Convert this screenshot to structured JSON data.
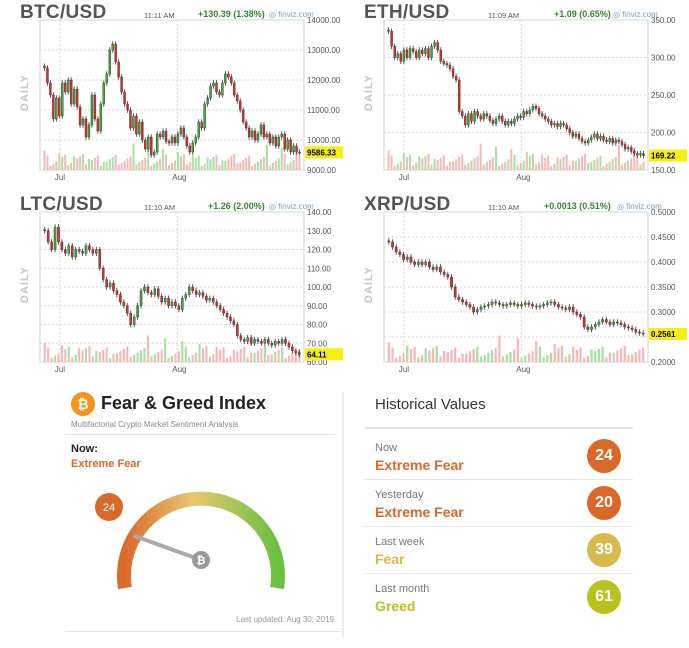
{
  "panels": [
    {
      "pair": "BTC/USD",
      "time": "11:11 AM",
      "change": "+130.39 (1.38%)",
      "brand": "finviz.com",
      "daily_label": "DAILY",
      "last_label": "9586.33",
      "chart_data": {
        "type": "candlestick",
        "title": "BTC/USD",
        "x_ticks": [
          "Jul",
          "Aug"
        ],
        "y_ticks": [
          "14000.00",
          "13000.00",
          "12000.00",
          "11000.00",
          "10000.00",
          "9000.00"
        ],
        "ylim": [
          9000,
          14000
        ],
        "last": 9586.33,
        "closes": [
          12400,
          11900,
          11500,
          10700,
          11400,
          10800,
          11900,
          11600,
          12000,
          11200,
          11700,
          11100,
          10500,
          10700,
          10100,
          10500,
          11500,
          10700,
          10300,
          11200,
          11900,
          12200,
          13000,
          13200,
          12600,
          12100,
          11600,
          11200,
          11000,
          10400,
          10800,
          10200,
          10600,
          10000,
          9700,
          10100,
          9500,
          9600,
          10200,
          10100,
          10300,
          9950,
          9900,
          10100,
          9900,
          10200,
          10400,
          10100,
          9800,
          9600,
          9900,
          10100,
          10600,
          10400,
          11200,
          11400,
          11800,
          11900,
          11600,
          11500,
          11900,
          12200,
          12100,
          11900,
          11500,
          11300,
          11000,
          10600,
          10400,
          10100,
          10300,
          10000,
          10200,
          10500,
          10100,
          10200,
          9900,
          10100,
          9800,
          10100,
          10200,
          9700,
          10000,
          9600,
          9800,
          9600,
          9586
        ]
      }
    },
    {
      "pair": "ETH/USD",
      "time": "11:09 AM",
      "change": "+1.09 (0.65%)",
      "brand": "finviz.com",
      "daily_label": "DAILY",
      "last_label": "169.22",
      "chart_data": {
        "type": "candlestick",
        "title": "ETH/USD",
        "x_ticks": [
          "Jul",
          "Aug"
        ],
        "y_ticks": [
          "350.00",
          "300.00",
          "250.00",
          "200.00",
          "150.00"
        ],
        "ylim": [
          150,
          350
        ],
        "last": 169.22,
        "closes": [
          335,
          315,
          300,
          305,
          295,
          310,
          300,
          312,
          308,
          300,
          310,
          305,
          312,
          300,
          315,
          320,
          310,
          295,
          292,
          290,
          285,
          275,
          270,
          228,
          222,
          210,
          225,
          215,
          228,
          222,
          218,
          225,
          222,
          216,
          212,
          218,
          222,
          215,
          210,
          215,
          212,
          218,
          222,
          220,
          228,
          225,
          230,
          235,
          232,
          225,
          222,
          218,
          215,
          210,
          212,
          208,
          212,
          210,
          205,
          200,
          195,
          198,
          192,
          188,
          186,
          190,
          194,
          198,
          192,
          195,
          190,
          188,
          192,
          186,
          190,
          188,
          184,
          178,
          180,
          175,
          172,
          170,
          172,
          169
        ]
      }
    },
    {
      "pair": "LTC/USD",
      "time": "11:10 AM",
      "change": "+1.26 (2.00%)",
      "brand": "finviz.com",
      "daily_label": "DAILY",
      "last_label": "64.11",
      "chart_data": {
        "type": "candlestick",
        "title": "LTC/USD",
        "x_ticks": [
          "Jul",
          "Aug"
        ],
        "y_ticks": [
          "140.00",
          "130.00",
          "120.00",
          "110.00",
          "100.00",
          "90.00",
          "80.00",
          "70.00",
          "60.00"
        ],
        "ylim": [
          60,
          140
        ],
        "last": 64.11,
        "closes": [
          130,
          124,
          120,
          132,
          124,
          120,
          118,
          122,
          116,
          120,
          119,
          118,
          122,
          120,
          118,
          120,
          110,
          104,
          100,
          102,
          98,
          96,
          92,
          90,
          86,
          80,
          84,
          90,
          98,
          100,
          97,
          96,
          99,
          95,
          92,
          94,
          90,
          92,
          90,
          88,
          94,
          96,
          100,
          98,
          96,
          97,
          95,
          93,
          94,
          92,
          90,
          88,
          86,
          84,
          82,
          80,
          74,
          72,
          71,
          73,
          70,
          72,
          71,
          70,
          72,
          70,
          69,
          71,
          70,
          72,
          70,
          68,
          66,
          65,
          64
        ]
      }
    },
    {
      "pair": "XRP/USD",
      "time": "11:10 AM",
      "change": "+0.0013 (0.51%)",
      "brand": "finviz.com",
      "daily_label": "DAILY",
      "last_label": "0.2561",
      "chart_data": {
        "type": "candlestick",
        "title": "XRP/USD",
        "x_ticks": [
          "Jul",
          "Aug"
        ],
        "y_ticks": [
          "0.5000",
          "0.4500",
          "0.4000",
          "0.3500",
          "0.3000",
          "0.2500",
          "0.2000"
        ],
        "ylim": [
          0.2,
          0.5
        ],
        "last": 0.2561,
        "closes": [
          0.44,
          0.43,
          0.42,
          0.415,
          0.405,
          0.41,
          0.4,
          0.395,
          0.4,
          0.395,
          0.4,
          0.39,
          0.385,
          0.39,
          0.38,
          0.375,
          0.37,
          0.35,
          0.33,
          0.325,
          0.32,
          0.315,
          0.31,
          0.3,
          0.305,
          0.31,
          0.312,
          0.315,
          0.32,
          0.318,
          0.315,
          0.312,
          0.315,
          0.318,
          0.315,
          0.312,
          0.315,
          0.318,
          0.315,
          0.312,
          0.31,
          0.312,
          0.315,
          0.318,
          0.32,
          0.315,
          0.31,
          0.308,
          0.305,
          0.31,
          0.3,
          0.295,
          0.29,
          0.27,
          0.265,
          0.27,
          0.275,
          0.28,
          0.285,
          0.28,
          0.275,
          0.28,
          0.278,
          0.275,
          0.27,
          0.268,
          0.265,
          0.26,
          0.258,
          0.256
        ]
      }
    }
  ],
  "fear_greed": {
    "logo": "₿",
    "title": "Fear & Greed Index",
    "subtitle": "Multifactorial Crypto Market Sentiment Analysis",
    "now_label": "Now:",
    "now_value": "Extreme Fear",
    "gauge_value": "24",
    "gauge_fraction": 0.24,
    "updated": "Last updated: Aug 30, 2019",
    "colors": {
      "fear": "#d9692b",
      "greed": "#7bc44a"
    }
  },
  "historical": {
    "title": "Historical Values",
    "rows": [
      {
        "label": "Now",
        "classification": "Extreme Fear",
        "value": "24",
        "color": "#d9692b"
      },
      {
        "label": "Yesterday",
        "classification": "Extreme Fear",
        "value": "20",
        "color": "#d9692b"
      },
      {
        "label": "Last week",
        "classification": "Fear",
        "value": "39",
        "color": "#d8b94c"
      },
      {
        "label": "Last month",
        "classification": "Greed",
        "value": "61",
        "color": "#b7c21e"
      }
    ]
  }
}
